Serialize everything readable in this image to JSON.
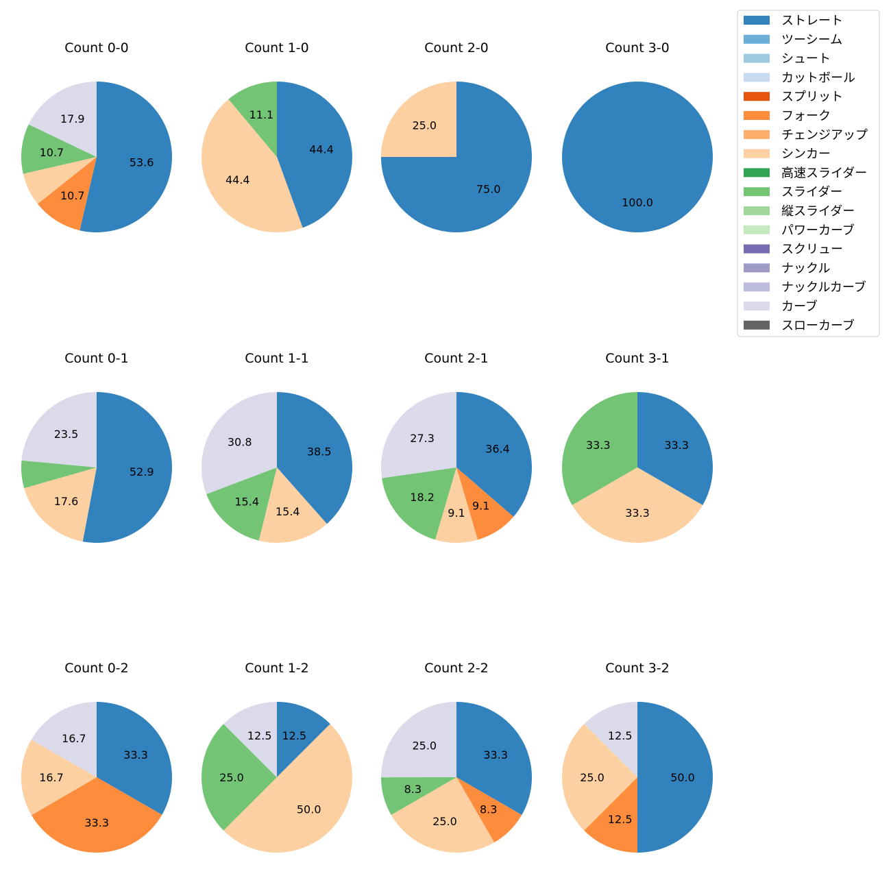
{
  "legend": {
    "placement": "top-right",
    "items": [
      {
        "label": "ストレート",
        "color": "#3182bd"
      },
      {
        "label": "ツーシーム",
        "color": "#6baed6"
      },
      {
        "label": "シュート",
        "color": "#9ecae1"
      },
      {
        "label": "カットボール",
        "color": "#c6dbef"
      },
      {
        "label": "スプリット",
        "color": "#e6550d"
      },
      {
        "label": "フォーク",
        "color": "#fd8d3c"
      },
      {
        "label": "チェンジアップ",
        "color": "#fdae6b"
      },
      {
        "label": "シンカー",
        "color": "#fdd0a2"
      },
      {
        "label": "高速スライダー",
        "color": "#31a354"
      },
      {
        "label": "スライダー",
        "color": "#74c476"
      },
      {
        "label": "縦スライダー",
        "color": "#a1d99b"
      },
      {
        "label": "パワーカーブ",
        "color": "#c7e9c0"
      },
      {
        "label": "スクリュー",
        "color": "#756bb1"
      },
      {
        "label": "ナックル",
        "color": "#9e9ac8"
      },
      {
        "label": "ナックルカーブ",
        "color": "#bcbddc"
      },
      {
        "label": "カーブ",
        "color": "#dadaeb"
      },
      {
        "label": "スローカーブ",
        "color": "#636363"
      }
    ]
  },
  "chart_data": [
    {
      "type": "pie",
      "title": "Count 0-0",
      "slices": [
        {
          "name": "ストレート",
          "value": 53.6
        },
        {
          "name": "フォーク",
          "value": 10.7
        },
        {
          "name": "シンカー",
          "value": 7.1,
          "label": ""
        },
        {
          "name": "スライダー",
          "value": 10.7
        },
        {
          "name": "カーブ",
          "value": 17.9
        }
      ]
    },
    {
      "type": "pie",
      "title": "Count 1-0",
      "slices": [
        {
          "name": "ストレート",
          "value": 44.4
        },
        {
          "name": "シンカー",
          "value": 44.4
        },
        {
          "name": "スライダー",
          "value": 11.1
        }
      ]
    },
    {
      "type": "pie",
      "title": "Count 2-0",
      "slices": [
        {
          "name": "ストレート",
          "value": 75.0
        },
        {
          "name": "シンカー",
          "value": 25.0
        }
      ]
    },
    {
      "type": "pie",
      "title": "Count 3-0",
      "slices": [
        {
          "name": "ストレート",
          "value": 100.0
        }
      ]
    },
    {
      "type": "pie",
      "title": "Count 0-1",
      "slices": [
        {
          "name": "ストレート",
          "value": 52.9
        },
        {
          "name": "シンカー",
          "value": 17.6
        },
        {
          "name": "スライダー",
          "value": 5.9,
          "label": ""
        },
        {
          "name": "カーブ",
          "value": 23.5
        }
      ]
    },
    {
      "type": "pie",
      "title": "Count 1-1",
      "slices": [
        {
          "name": "ストレート",
          "value": 38.5
        },
        {
          "name": "シンカー",
          "value": 15.4
        },
        {
          "name": "スライダー",
          "value": 15.4
        },
        {
          "name": "カーブ",
          "value": 30.8
        }
      ]
    },
    {
      "type": "pie",
      "title": "Count 2-1",
      "slices": [
        {
          "name": "ストレート",
          "value": 36.4
        },
        {
          "name": "フォーク",
          "value": 9.1
        },
        {
          "name": "シンカー",
          "value": 9.1
        },
        {
          "name": "スライダー",
          "value": 18.2
        },
        {
          "name": "カーブ",
          "value": 27.3
        }
      ]
    },
    {
      "type": "pie",
      "title": "Count 3-1",
      "slices": [
        {
          "name": "ストレート",
          "value": 33.3
        },
        {
          "name": "シンカー",
          "value": 33.3
        },
        {
          "name": "スライダー",
          "value": 33.3
        }
      ]
    },
    {
      "type": "pie",
      "title": "Count 0-2",
      "slices": [
        {
          "name": "ストレート",
          "value": 33.3
        },
        {
          "name": "フォーク",
          "value": 33.3
        },
        {
          "name": "シンカー",
          "value": 16.7
        },
        {
          "name": "カーブ",
          "value": 16.7
        }
      ]
    },
    {
      "type": "pie",
      "title": "Count 1-2",
      "slices": [
        {
          "name": "ストレート",
          "value": 12.5
        },
        {
          "name": "シンカー",
          "value": 50.0
        },
        {
          "name": "スライダー",
          "value": 25.0
        },
        {
          "name": "カーブ",
          "value": 12.5
        }
      ]
    },
    {
      "type": "pie",
      "title": "Count 2-2",
      "slices": [
        {
          "name": "ストレート",
          "value": 33.3
        },
        {
          "name": "フォーク",
          "value": 8.3
        },
        {
          "name": "シンカー",
          "value": 25.0
        },
        {
          "name": "スライダー",
          "value": 8.3
        },
        {
          "name": "カーブ",
          "value": 25.0
        }
      ]
    },
    {
      "type": "pie",
      "title": "Count 3-2",
      "slices": [
        {
          "name": "ストレート",
          "value": 50.0
        },
        {
          "name": "フォーク",
          "value": 12.5
        },
        {
          "name": "シンカー",
          "value": 25.0
        },
        {
          "name": "カーブ",
          "value": 12.5
        }
      ]
    }
  ]
}
